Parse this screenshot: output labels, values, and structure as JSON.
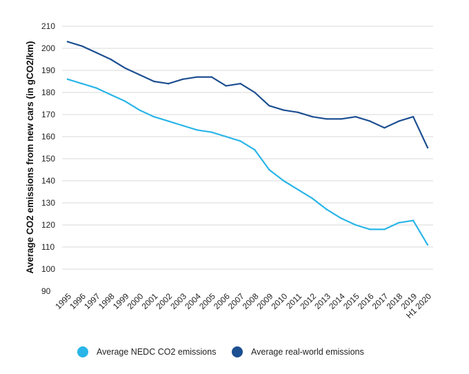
{
  "chart_data": {
    "type": "line",
    "title": "",
    "xlabel": "",
    "ylabel": "Average CO2 emissions from new cars (in gCO2/km)",
    "ylim": [
      90,
      210
    ],
    "yticks": [
      90,
      100,
      110,
      120,
      130,
      140,
      150,
      160,
      170,
      180,
      190,
      200,
      210
    ],
    "grid": true,
    "legend_position": "bottom",
    "categories": [
      "1995",
      "1996",
      "1997",
      "1998",
      "1999",
      "2000",
      "2001",
      "2002",
      "2003",
      "2004",
      "2005",
      "2006",
      "2007",
      "2008",
      "2009",
      "2010",
      "2011",
      "2012",
      "2013",
      "2014",
      "2015",
      "2016",
      "2017",
      "2018",
      "2019",
      "H1 2020"
    ],
    "series": [
      {
        "name": "Average NEDC CO2 emissions",
        "color": "#29b5e8",
        "values": [
          186,
          184,
          182,
          179,
          176,
          172,
          169,
          167,
          165,
          163,
          162,
          160,
          158,
          154,
          145,
          140,
          136,
          132,
          127,
          123,
          120,
          118,
          118,
          121,
          122,
          111
        ]
      },
      {
        "name": "Average real-world emissions",
        "color": "#1d4f91",
        "values": [
          203,
          201,
          198,
          195,
          191,
          188,
          185,
          184,
          186,
          187,
          187,
          183,
          184,
          180,
          174,
          172,
          171,
          169,
          168,
          168,
          169,
          167,
          164,
          167,
          169,
          155
        ]
      }
    ]
  }
}
